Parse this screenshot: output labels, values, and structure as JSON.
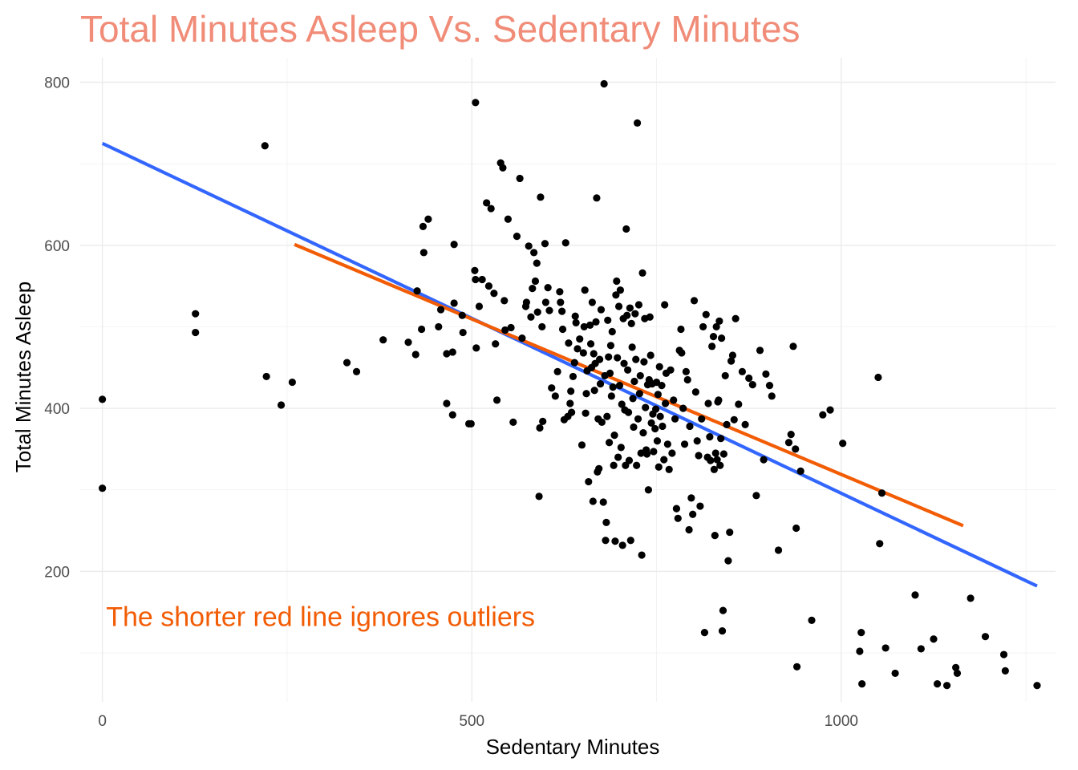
{
  "chart_data": {
    "type": "scatter",
    "title": "Total Minutes Asleep Vs. Sedentary Minutes",
    "xlabel": "Sedentary Minutes",
    "ylabel": "Total Minutes Asleep",
    "xlim": [
      -30,
      1290
    ],
    "ylim": [
      40,
      830
    ],
    "x_ticks": [
      0,
      500,
      1000
    ],
    "y_ticks": [
      200,
      400,
      600,
      800
    ],
    "x_minor_ticks": [
      250,
      750,
      1250
    ],
    "y_minor_ticks": [
      100,
      300,
      500,
      700
    ],
    "grid": true,
    "legend": "none",
    "colors": {
      "title": "#F08C78",
      "points": "#000000",
      "trend_all": "#3366FF",
      "trend_trimmed": "#F25C05",
      "annotation": "#F25C05"
    },
    "annotation": {
      "text": "The shorter red line ignores outliers",
      "x": 5,
      "y": 145
    },
    "trend_lines": [
      {
        "color": "#3366FF",
        "x": [
          0,
          1265
        ],
        "y": [
          725,
          182
        ]
      },
      {
        "color": "#F25C05",
        "x": [
          260,
          1165
        ],
        "y": [
          601,
          256
        ]
      }
    ],
    "points": [
      [
        0,
        411
      ],
      [
        0,
        302
      ],
      [
        126,
        516
      ],
      [
        126,
        493
      ],
      [
        220,
        722
      ],
      [
        222,
        439
      ],
      [
        242,
        404
      ],
      [
        257,
        432
      ],
      [
        331,
        456
      ],
      [
        344,
        445
      ],
      [
        380,
        484
      ],
      [
        414,
        481
      ],
      [
        424,
        466
      ],
      [
        426,
        544
      ],
      [
        432,
        497
      ],
      [
        434,
        623
      ],
      [
        435,
        591
      ],
      [
        441,
        632
      ],
      [
        455,
        500
      ],
      [
        458,
        521
      ],
      [
        466,
        467
      ],
      [
        466,
        406
      ],
      [
        474,
        392
      ],
      [
        474,
        469
      ],
      [
        476,
        601
      ],
      [
        476,
        529
      ],
      [
        487,
        514
      ],
      [
        488,
        493
      ],
      [
        496,
        381
      ],
      [
        499,
        381
      ],
      [
        504,
        569
      ],
      [
        505,
        775
      ],
      [
        505,
        558
      ],
      [
        506,
        474
      ],
      [
        510,
        525
      ],
      [
        514,
        558
      ],
      [
        520,
        652
      ],
      [
        523,
        550
      ],
      [
        526,
        645
      ],
      [
        530,
        541
      ],
      [
        532,
        479
      ],
      [
        534,
        410
      ],
      [
        539,
        701
      ],
      [
        542,
        695
      ],
      [
        544,
        532
      ],
      [
        545,
        496
      ],
      [
        549,
        632
      ],
      [
        553,
        499
      ],
      [
        556,
        383
      ],
      [
        561,
        611
      ],
      [
        565,
        682
      ],
      [
        568,
        486
      ],
      [
        573,
        525
      ],
      [
        574,
        530
      ],
      [
        577,
        599
      ],
      [
        580,
        512
      ],
      [
        582,
        547
      ],
      [
        584,
        591
      ],
      [
        586,
        556
      ],
      [
        588,
        578
      ],
      [
        589,
        518
      ],
      [
        591,
        292
      ],
      [
        592,
        376
      ],
      [
        593,
        659
      ],
      [
        595,
        500
      ],
      [
        596,
        384
      ],
      [
        599,
        602
      ],
      [
        600,
        530
      ],
      [
        603,
        548
      ],
      [
        605,
        520
      ],
      [
        608,
        425
      ],
      [
        613,
        415
      ],
      [
        616,
        445
      ],
      [
        619,
        543
      ],
      [
        620,
        530
      ],
      [
        622,
        519
      ],
      [
        623,
        497
      ],
      [
        625,
        386
      ],
      [
        627,
        603
      ],
      [
        630,
        390
      ],
      [
        631,
        480
      ],
      [
        633,
        406
      ],
      [
        634,
        421
      ],
      [
        635,
        395
      ],
      [
        637,
        439
      ],
      [
        639,
        456
      ],
      [
        640,
        513
      ],
      [
        641,
        505
      ],
      [
        643,
        473
      ],
      [
        646,
        485
      ],
      [
        649,
        355
      ],
      [
        651,
        468
      ],
      [
        652,
        500
      ],
      [
        653,
        545
      ],
      [
        654,
        394
      ],
      [
        655,
        418
      ],
      [
        656,
        446
      ],
      [
        658,
        310
      ],
      [
        660,
        502
      ],
      [
        661,
        479
      ],
      [
        662,
        450
      ],
      [
        663,
        530
      ],
      [
        664,
        286
      ],
      [
        665,
        467
      ],
      [
        666,
        422
      ],
      [
        667,
        455
      ],
      [
        668,
        506
      ],
      [
        669,
        658
      ],
      [
        670,
        322
      ],
      [
        671,
        387
      ],
      [
        672,
        326
      ],
      [
        673,
        460
      ],
      [
        674,
        430
      ],
      [
        675,
        521
      ],
      [
        676,
        383
      ],
      [
        678,
        285
      ],
      [
        679,
        798
      ],
      [
        680,
        440
      ],
      [
        681,
        238
      ],
      [
        682,
        260
      ],
      [
        683,
        390
      ],
      [
        684,
        508
      ],
      [
        685,
        463
      ],
      [
        686,
        358
      ],
      [
        687,
        443
      ],
      [
        688,
        477
      ],
      [
        689,
        415
      ],
      [
        690,
        494
      ],
      [
        691,
        426
      ],
      [
        692,
        330
      ],
      [
        693,
        367
      ],
      [
        694,
        237
      ],
      [
        695,
        539
      ],
      [
        696,
        556
      ],
      [
        697,
        462
      ],
      [
        698,
        340
      ],
      [
        699,
        525
      ],
      [
        700,
        428
      ],
      [
        701,
        545
      ],
      [
        702,
        352
      ],
      [
        703,
        405
      ],
      [
        704,
        232
      ],
      [
        705,
        510
      ],
      [
        706,
        455
      ],
      [
        707,
        398
      ],
      [
        708,
        330
      ],
      [
        709,
        620
      ],
      [
        710,
        514
      ],
      [
        711,
        447
      ],
      [
        712,
        395
      ],
      [
        713,
        336
      ],
      [
        714,
        523
      ],
      [
        715,
        238
      ],
      [
        716,
        504
      ],
      [
        717,
        475
      ],
      [
        718,
        412
      ],
      [
        719,
        377
      ],
      [
        720,
        433
      ],
      [
        721,
        516
      ],
      [
        722,
        460
      ],
      [
        723,
        330
      ],
      [
        724,
        750
      ],
      [
        725,
        387
      ],
      [
        726,
        527
      ],
      [
        727,
        418
      ],
      [
        728,
        440
      ],
      [
        729,
        345
      ],
      [
        730,
        220
      ],
      [
        731,
        566
      ],
      [
        732,
        370
      ],
      [
        733,
        457
      ],
      [
        734,
        510
      ],
      [
        735,
        401
      ],
      [
        736,
        349
      ],
      [
        737,
        344
      ],
      [
        738,
        429
      ],
      [
        739,
        300
      ],
      [
        740,
        435
      ],
      [
        741,
        512
      ],
      [
        742,
        465
      ],
      [
        743,
        382
      ],
      [
        744,
        430
      ],
      [
        745,
        393
      ],
      [
        746,
        347
      ],
      [
        748,
        375
      ],
      [
        749,
        399
      ],
      [
        750,
        432
      ],
      [
        751,
        360
      ],
      [
        752,
        417
      ],
      [
        753,
        328
      ],
      [
        754,
        451
      ],
      [
        755,
        390
      ],
      [
        757,
        428
      ],
      [
        758,
        378
      ],
      [
        760,
        337
      ],
      [
        761,
        527
      ],
      [
        762,
        406
      ],
      [
        763,
        443
      ],
      [
        765,
        356
      ],
      [
        767,
        325
      ],
      [
        769,
        447
      ],
      [
        771,
        345
      ],
      [
        773,
        410
      ],
      [
        775,
        387
      ],
      [
        777,
        277
      ],
      [
        779,
        265
      ],
      [
        781,
        471
      ],
      [
        783,
        497
      ],
      [
        784,
        468
      ],
      [
        786,
        400
      ],
      [
        788,
        356
      ],
      [
        790,
        445
      ],
      [
        792,
        435
      ],
      [
        794,
        251
      ],
      [
        795,
        378
      ],
      [
        797,
        290
      ],
      [
        799,
        270
      ],
      [
        801,
        532
      ],
      [
        803,
        420
      ],
      [
        805,
        360
      ],
      [
        807,
        342
      ],
      [
        809,
        280
      ],
      [
        811,
        387
      ],
      [
        813,
        500
      ],
      [
        815,
        125
      ],
      [
        817,
        515
      ],
      [
        819,
        340
      ],
      [
        820,
        406
      ],
      [
        822,
        365
      ],
      [
        823,
        336
      ],
      [
        825,
        476
      ],
      [
        827,
        488
      ],
      [
        828,
        325
      ],
      [
        829,
        244
      ],
      [
        830,
        345
      ],
      [
        831,
        500
      ],
      [
        832,
        337
      ],
      [
        833,
        408
      ],
      [
        834,
        410
      ],
      [
        835,
        507
      ],
      [
        836,
        330
      ],
      [
        837,
        363
      ],
      [
        838,
        486
      ],
      [
        839,
        127
      ],
      [
        840,
        152
      ],
      [
        841,
        344
      ],
      [
        843,
        440
      ],
      [
        845,
        380
      ],
      [
        847,
        213
      ],
      [
        849,
        248
      ],
      [
        851,
        458
      ],
      [
        853,
        465
      ],
      [
        855,
        386
      ],
      [
        857,
        510
      ],
      [
        861,
        405
      ],
      [
        866,
        445
      ],
      [
        870,
        380
      ],
      [
        875,
        437
      ],
      [
        880,
        429
      ],
      [
        885,
        293
      ],
      [
        890,
        471
      ],
      [
        895,
        337
      ],
      [
        898,
        442
      ],
      [
        903,
        428
      ],
      [
        906,
        415
      ],
      [
        915,
        226
      ],
      [
        929,
        358
      ],
      [
        932,
        368
      ],
      [
        935,
        476
      ],
      [
        938,
        350
      ],
      [
        939,
        253
      ],
      [
        940,
        83
      ],
      [
        945,
        323
      ],
      [
        960,
        140
      ],
      [
        975,
        392
      ],
      [
        985,
        398
      ],
      [
        1002,
        357
      ],
      [
        1025,
        102
      ],
      [
        1027,
        125
      ],
      [
        1028,
        62
      ],
      [
        1050,
        438
      ],
      [
        1052,
        234
      ],
      [
        1055,
        296
      ],
      [
        1060,
        106
      ],
      [
        1073,
        75
      ],
      [
        1100,
        171
      ],
      [
        1108,
        105
      ],
      [
        1125,
        117
      ],
      [
        1130,
        62
      ],
      [
        1143,
        60
      ],
      [
        1155,
        82
      ],
      [
        1157,
        75
      ],
      [
        1175,
        167
      ],
      [
        1195,
        120
      ],
      [
        1220,
        98
      ],
      [
        1222,
        78
      ],
      [
        1265,
        60
      ]
    ]
  }
}
